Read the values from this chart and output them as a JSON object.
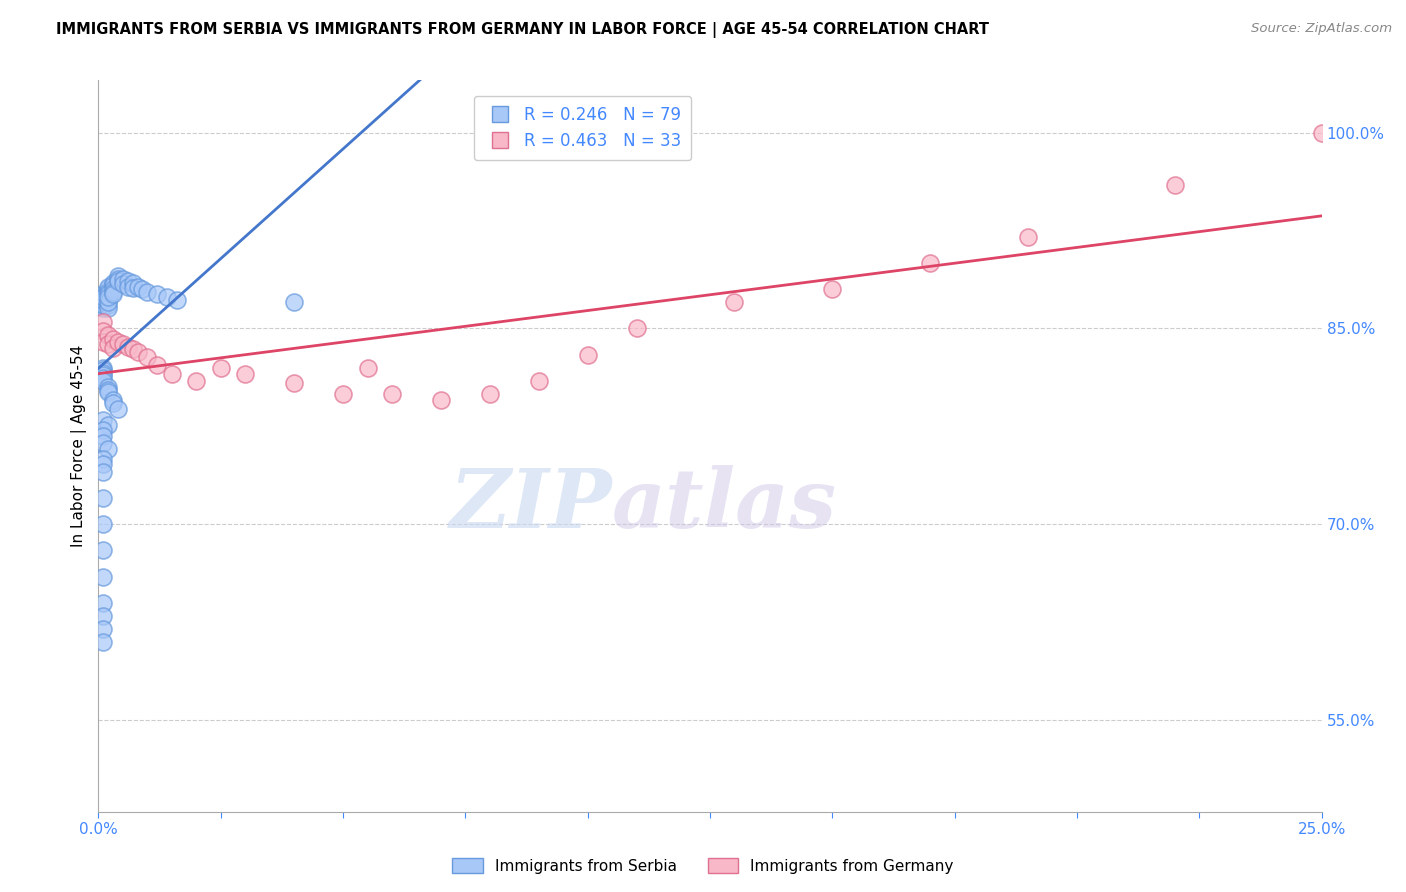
{
  "title": "IMMIGRANTS FROM SERBIA VS IMMIGRANTS FROM GERMANY IN LABOR FORCE | AGE 45-54 CORRELATION CHART",
  "source": "Source: ZipAtlas.com",
  "ylabel": "In Labor Force | Age 45-54",
  "xlim": [
    0.0,
    0.25
  ],
  "ylim": [
    0.48,
    1.04
  ],
  "yticks": [
    0.55,
    0.7,
    0.85,
    1.0
  ],
  "ytick_labels": [
    "55.0%",
    "70.0%",
    "85.0%",
    "100.0%"
  ],
  "xticks": [
    0.0,
    0.025,
    0.05,
    0.075,
    0.1,
    0.125,
    0.15,
    0.175,
    0.2,
    0.225,
    0.25
  ],
  "xtick_labels": [
    "0.0%",
    "",
    "",
    "",
    "",
    "",
    "",
    "",
    "",
    "",
    "25.0%"
  ],
  "serbia_color": "#a8c8f8",
  "germany_color": "#f8b8c8",
  "serbia_edge": "#6699dd",
  "germany_edge": "#e07090",
  "trend_serbia_color": "#4477cc",
  "trend_germany_color": "#dd4466",
  "legend_r_serbia": "R = 0.246",
  "legend_n_serbia": "N = 79",
  "legend_r_germany": "R = 0.463",
  "legend_n_germany": "N = 33",
  "label_serbia": "Immigrants from Serbia",
  "label_germany": "Immigrants from Germany",
  "axis_color": "#4488ff",
  "serbia_x": [
    0.001,
    0.001,
    0.001,
    0.001,
    0.001,
    0.001,
    0.001,
    0.001,
    0.001,
    0.001,
    0.001,
    0.001,
    0.001,
    0.001,
    0.001,
    0.001,
    0.001,
    0.001,
    0.001,
    0.001,
    0.002,
    0.002,
    0.002,
    0.002,
    0.002,
    0.002,
    0.002,
    0.002,
    0.002,
    0.003,
    0.003,
    0.003,
    0.003,
    0.003,
    0.004,
    0.004,
    0.004,
    0.005,
    0.005,
    0.006,
    0.006,
    0.007,
    0.007,
    0.008,
    0.009,
    0.01,
    0.012,
    0.014,
    0.016,
    0.04,
    0.001,
    0.001,
    0.001,
    0.001,
    0.001,
    0.001,
    0.002,
    0.002,
    0.002,
    0.003,
    0.003,
    0.004,
    0.001,
    0.002,
    0.001,
    0.001,
    0.001,
    0.002,
    0.001,
    0.001,
    0.001,
    0.001,
    0.001,
    0.001,
    0.001,
    0.001,
    0.001,
    0.001,
    0.001
  ],
  "serbia_y": [
    0.87,
    0.872,
    0.868,
    0.875,
    0.871,
    0.873,
    0.869,
    0.876,
    0.874,
    0.872,
    0.868,
    0.87,
    0.866,
    0.871,
    0.869,
    0.873,
    0.87,
    0.868,
    0.872,
    0.874,
    0.88,
    0.882,
    0.878,
    0.876,
    0.872,
    0.868,
    0.866,
    0.87,
    0.874,
    0.885,
    0.883,
    0.88,
    0.878,
    0.876,
    0.89,
    0.888,
    0.886,
    0.888,
    0.884,
    0.886,
    0.882,
    0.885,
    0.881,
    0.882,
    0.88,
    0.878,
    0.876,
    0.874,
    0.872,
    0.87,
    0.82,
    0.818,
    0.816,
    0.814,
    0.812,
    0.81,
    0.805,
    0.803,
    0.801,
    0.795,
    0.793,
    0.788,
    0.78,
    0.776,
    0.772,
    0.768,
    0.762,
    0.758,
    0.75,
    0.746,
    0.74,
    0.72,
    0.7,
    0.68,
    0.66,
    0.64,
    0.63,
    0.62,
    0.61
  ],
  "germany_x": [
    0.001,
    0.001,
    0.001,
    0.002,
    0.002,
    0.003,
    0.003,
    0.004,
    0.005,
    0.006,
    0.007,
    0.008,
    0.01,
    0.012,
    0.015,
    0.02,
    0.025,
    0.03,
    0.04,
    0.05,
    0.055,
    0.06,
    0.07,
    0.08,
    0.09,
    0.1,
    0.11,
    0.13,
    0.15,
    0.17,
    0.19,
    0.22,
    0.25
  ],
  "germany_y": [
    0.855,
    0.848,
    0.84,
    0.845,
    0.838,
    0.842,
    0.835,
    0.84,
    0.838,
    0.836,
    0.834,
    0.832,
    0.828,
    0.822,
    0.815,
    0.81,
    0.82,
    0.815,
    0.808,
    0.8,
    0.82,
    0.8,
    0.795,
    0.8,
    0.81,
    0.83,
    0.85,
    0.87,
    0.88,
    0.9,
    0.92,
    0.96,
    1.0
  ]
}
